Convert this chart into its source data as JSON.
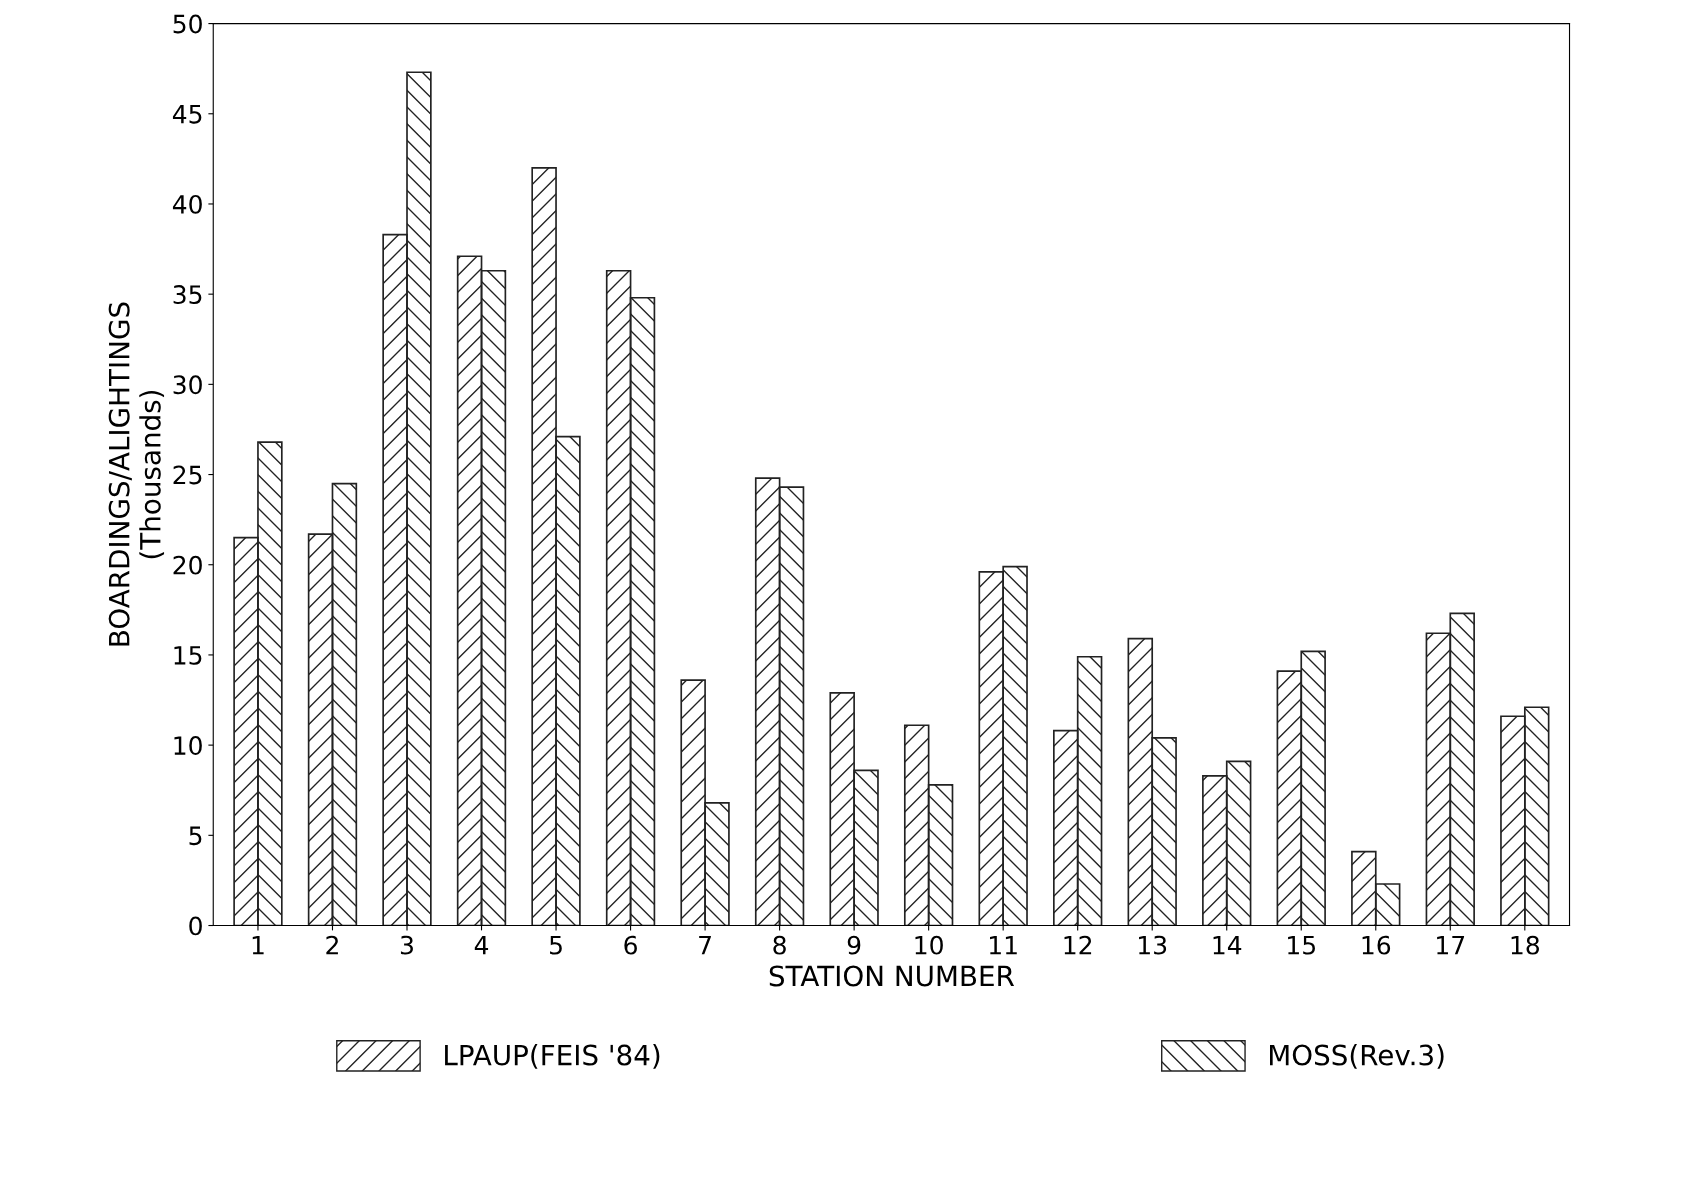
{
  "chart_data": {
    "type": "bar",
    "xlabel": "STATION NUMBER",
    "ylabel": "BOARDINGS/ALIGHTINGS\n(Thousands)",
    "categories": [
      "1",
      "2",
      "3",
      "4",
      "5",
      "6",
      "7",
      "8",
      "9",
      "10",
      "11",
      "12",
      "13",
      "14",
      "15",
      "16",
      "17",
      "18"
    ],
    "series": [
      {
        "name": "LPAUP(FEIS '84)",
        "color": "#222222",
        "values": [
          21.5,
          21.7,
          38.3,
          37.1,
          42.0,
          36.3,
          13.6,
          24.8,
          12.9,
          11.1,
          19.6,
          10.8,
          15.9,
          8.3,
          14.1,
          4.1,
          16.2,
          11.6
        ]
      },
      {
        "name": "MOSS(Rev.3)",
        "color": "#222222",
        "values": [
          26.8,
          24.5,
          47.3,
          36.3,
          27.1,
          34.8,
          6.8,
          24.3,
          8.6,
          7.8,
          19.9,
          14.9,
          10.4,
          9.1,
          15.2,
          2.3,
          17.3,
          12.1
        ]
      }
    ],
    "ylim": [
      0,
      50
    ],
    "yticks": [
      0,
      5,
      10,
      15,
      20,
      25,
      30,
      35,
      40,
      45,
      50
    ],
    "grid": false,
    "legend": "bottom"
  }
}
